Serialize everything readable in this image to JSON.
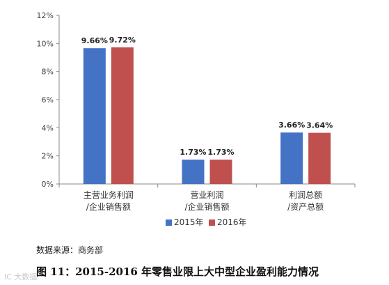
{
  "chart_data": {
    "type": "bar",
    "categories": [
      [
        "主营业务利润",
        "/企业销售额"
      ],
      [
        "营业利润",
        "/企业销售额"
      ],
      [
        "利润总额",
        "/资产总额"
      ]
    ],
    "series": [
      {
        "name": "2015年",
        "color": "#4472c4",
        "values": [
          9.66,
          1.73,
          3.66
        ],
        "labels": [
          "9.66%",
          "1.73%",
          "3.66%"
        ]
      },
      {
        "name": "2016年",
        "color": "#c0504d",
        "values": [
          9.72,
          1.73,
          3.64
        ],
        "labels": [
          "9.72%",
          "1.73%",
          "3.64%"
        ]
      }
    ],
    "ylim": [
      0,
      12
    ],
    "yticks": [
      0,
      2,
      4,
      6,
      8,
      10,
      12
    ],
    "ytick_labels": [
      "0%",
      "2%",
      "4%",
      "6%",
      "8%",
      "10%",
      "12%"
    ],
    "grid": false,
    "legend_position": "bottom"
  },
  "source_text": "数据来源：商务部",
  "caption": "图 11：2015-2016 年零售业限上大中型企业盈利能力情况",
  "watermark": "IC 大数据"
}
